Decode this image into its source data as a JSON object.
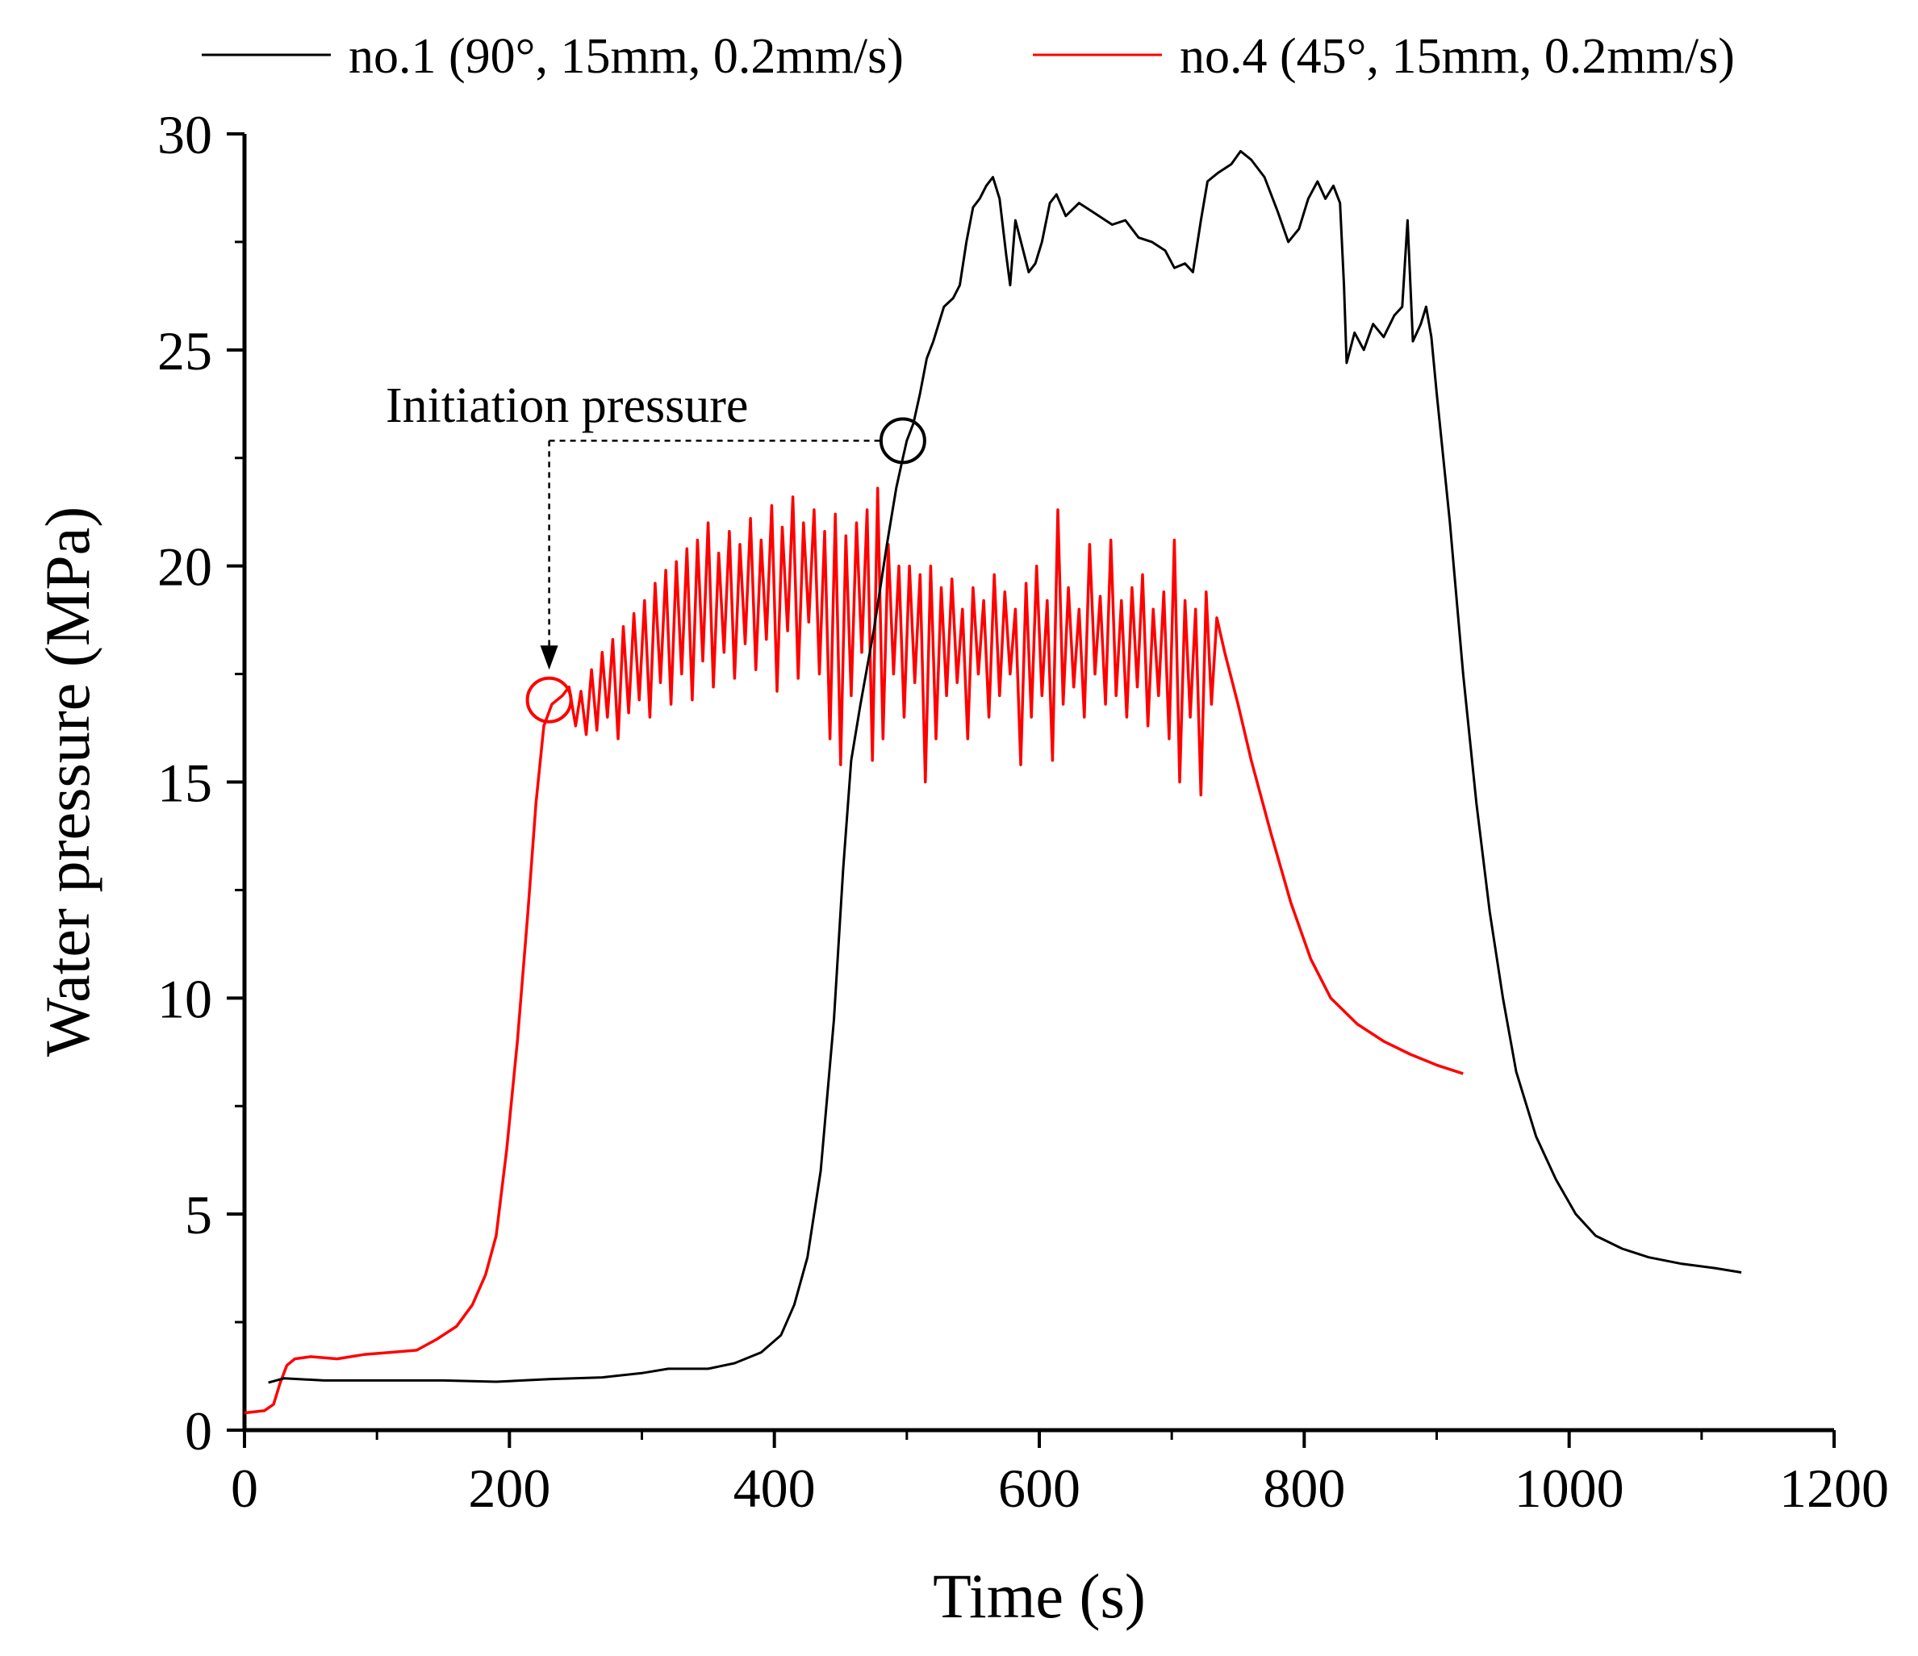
{
  "chart_data": {
    "type": "line",
    "title": "",
    "xlabel": "Time (s)",
    "ylabel": "Water pressure (MPa)",
    "xlim": [
      0,
      1200
    ],
    "ylim": [
      0,
      30
    ],
    "xticks": [
      "0",
      "200",
      "400",
      "600",
      "800",
      "1000",
      "1200"
    ],
    "yticks": [
      "0",
      "5",
      "10",
      "15",
      "20",
      "25",
      "30"
    ],
    "grid": false,
    "legend_position": "top",
    "series": [
      {
        "name": "no.1 (90°, 15mm, 0.2mm/s)",
        "color": "#000000",
        "points": [
          [
            18,
            1.1
          ],
          [
            30,
            1.2
          ],
          [
            60,
            1.15
          ],
          [
            100,
            1.15
          ],
          [
            150,
            1.15
          ],
          [
            190,
            1.12
          ],
          [
            230,
            1.18
          ],
          [
            270,
            1.22
          ],
          [
            300,
            1.32
          ],
          [
            320,
            1.42
          ],
          [
            350,
            1.42
          ],
          [
            370,
            1.55
          ],
          [
            390,
            1.8
          ],
          [
            405,
            2.2
          ],
          [
            415,
            2.9
          ],
          [
            425,
            4.0
          ],
          [
            435,
            6.0
          ],
          [
            445,
            9.5
          ],
          [
            452,
            13.0
          ],
          [
            458,
            15.5
          ],
          [
            465,
            16.8
          ],
          [
            475,
            18.5
          ],
          [
            485,
            20.5
          ],
          [
            492,
            21.8
          ],
          [
            497,
            22.5
          ],
          [
            500,
            22.9
          ],
          [
            505,
            23.3
          ],
          [
            510,
            24.0
          ],
          [
            515,
            24.8
          ],
          [
            520,
            25.2
          ],
          [
            528,
            26.0
          ],
          [
            535,
            26.2
          ],
          [
            540,
            26.5
          ],
          [
            545,
            27.5
          ],
          [
            550,
            28.3
          ],
          [
            555,
            28.5
          ],
          [
            560,
            28.8
          ],
          [
            565,
            29.0
          ],
          [
            570,
            28.5
          ],
          [
            575,
            27.2
          ],
          [
            578,
            26.5
          ],
          [
            582,
            28.0
          ],
          [
            587,
            27.4
          ],
          [
            592,
            26.8
          ],
          [
            597,
            27.0
          ],
          [
            602,
            27.5
          ],
          [
            608,
            28.4
          ],
          [
            613,
            28.6
          ],
          [
            620,
            28.1
          ],
          [
            630,
            28.4
          ],
          [
            640,
            28.2
          ],
          [
            655,
            27.9
          ],
          [
            665,
            28.0
          ],
          [
            675,
            27.6
          ],
          [
            685,
            27.5
          ],
          [
            695,
            27.3
          ],
          [
            702,
            26.9
          ],
          [
            710,
            27.0
          ],
          [
            716,
            26.8
          ],
          [
            722,
            28.0
          ],
          [
            727,
            28.9
          ],
          [
            735,
            29.1
          ],
          [
            745,
            29.3
          ],
          [
            752,
            29.6
          ],
          [
            760,
            29.4
          ],
          [
            770,
            29.0
          ],
          [
            780,
            28.2
          ],
          [
            788,
            27.5
          ],
          [
            796,
            27.8
          ],
          [
            803,
            28.5
          ],
          [
            810,
            28.9
          ],
          [
            816,
            28.5
          ],
          [
            822,
            28.8
          ],
          [
            827,
            28.4
          ],
          [
            830,
            26.5
          ],
          [
            832,
            24.7
          ],
          [
            838,
            25.4
          ],
          [
            845,
            25.0
          ],
          [
            852,
            25.6
          ],
          [
            860,
            25.3
          ],
          [
            868,
            25.8
          ],
          [
            874,
            26.0
          ],
          [
            878,
            28.0
          ],
          [
            882,
            25.2
          ],
          [
            888,
            25.6
          ],
          [
            892,
            26.0
          ],
          [
            896,
            25.3
          ],
          [
            900,
            24.0
          ],
          [
            910,
            21.0
          ],
          [
            920,
            17.5
          ],
          [
            930,
            14.5
          ],
          [
            940,
            12.0
          ],
          [
            950,
            10.0
          ],
          [
            960,
            8.3
          ],
          [
            975,
            6.8
          ],
          [
            990,
            5.8
          ],
          [
            1005,
            5.0
          ],
          [
            1020,
            4.5
          ],
          [
            1040,
            4.2
          ],
          [
            1060,
            4.0
          ],
          [
            1085,
            3.85
          ],
          [
            1110,
            3.75
          ],
          [
            1130,
            3.65
          ]
        ]
      },
      {
        "name": "no.4 (45°, 15mm, 0.2mm/s)",
        "color": "#ff0000",
        "points": [
          [
            0,
            0.4
          ],
          [
            15,
            0.45
          ],
          [
            22,
            0.6
          ],
          [
            27,
            1.1
          ],
          [
            32,
            1.5
          ],
          [
            38,
            1.65
          ],
          [
            50,
            1.7
          ],
          [
            70,
            1.65
          ],
          [
            90,
            1.75
          ],
          [
            110,
            1.8
          ],
          [
            130,
            1.85
          ],
          [
            145,
            2.1
          ],
          [
            160,
            2.4
          ],
          [
            172,
            2.9
          ],
          [
            182,
            3.6
          ],
          [
            190,
            4.5
          ],
          [
            198,
            6.5
          ],
          [
            206,
            9.0
          ],
          [
            214,
            12.0
          ],
          [
            220,
            14.5
          ],
          [
            226,
            16.3
          ],
          [
            232,
            16.8
          ],
          [
            240,
            17.0
          ],
          [
            245,
            17.2
          ],
          [
            250,
            16.3
          ],
          [
            254,
            17.1
          ],
          [
            258,
            16.1
          ],
          [
            262,
            17.6
          ],
          [
            266,
            16.2
          ],
          [
            270,
            18.0
          ],
          [
            274,
            16.5
          ],
          [
            278,
            18.3
          ],
          [
            282,
            16.0
          ],
          [
            286,
            18.6
          ],
          [
            290,
            16.6
          ],
          [
            294,
            18.9
          ],
          [
            298,
            16.9
          ],
          [
            302,
            19.2
          ],
          [
            306,
            16.5
          ],
          [
            310,
            19.6
          ],
          [
            314,
            17.3
          ],
          [
            318,
            19.9
          ],
          [
            322,
            16.8
          ],
          [
            326,
            20.1
          ],
          [
            330,
            17.5
          ],
          [
            334,
            20.4
          ],
          [
            338,
            16.9
          ],
          [
            342,
            20.6
          ],
          [
            346,
            17.8
          ],
          [
            350,
            21.0
          ],
          [
            354,
            17.2
          ],
          [
            358,
            20.3
          ],
          [
            362,
            18.0
          ],
          [
            366,
            20.8
          ],
          [
            370,
            17.4
          ],
          [
            374,
            20.5
          ],
          [
            378,
            18.2
          ],
          [
            382,
            21.1
          ],
          [
            386,
            17.6
          ],
          [
            390,
            20.6
          ],
          [
            394,
            18.3
          ],
          [
            398,
            21.4
          ],
          [
            402,
            17.1
          ],
          [
            406,
            20.9
          ],
          [
            410,
            18.5
          ],
          [
            414,
            21.6
          ],
          [
            418,
            17.4
          ],
          [
            422,
            21.0
          ],
          [
            426,
            18.7
          ],
          [
            430,
            21.3
          ],
          [
            434,
            17.5
          ],
          [
            438,
            20.8
          ],
          [
            442,
            16.0
          ],
          [
            446,
            21.2
          ],
          [
            450,
            15.4
          ],
          [
            454,
            20.7
          ],
          [
            458,
            17.0
          ],
          [
            462,
            21.0
          ],
          [
            466,
            18.0
          ],
          [
            470,
            21.3
          ],
          [
            474,
            15.5
          ],
          [
            478,
            21.8
          ],
          [
            482,
            16.0
          ],
          [
            486,
            20.5
          ],
          [
            490,
            17.5
          ],
          [
            494,
            20.0
          ],
          [
            498,
            16.5
          ],
          [
            502,
            20.0
          ],
          [
            506,
            17.3
          ],
          [
            510,
            19.8
          ],
          [
            514,
            15.0
          ],
          [
            518,
            20.0
          ],
          [
            522,
            16.0
          ],
          [
            526,
            19.5
          ],
          [
            530,
            17.0
          ],
          [
            534,
            19.7
          ],
          [
            538,
            17.3
          ],
          [
            542,
            19.0
          ],
          [
            546,
            16.0
          ],
          [
            550,
            19.5
          ],
          [
            554,
            17.5
          ],
          [
            558,
            19.2
          ],
          [
            562,
            16.5
          ],
          [
            566,
            19.8
          ],
          [
            570,
            17.0
          ],
          [
            574,
            19.4
          ],
          [
            578,
            17.5
          ],
          [
            582,
            19.0
          ],
          [
            586,
            15.4
          ],
          [
            590,
            19.6
          ],
          [
            594,
            16.5
          ],
          [
            598,
            20.0
          ],
          [
            602,
            17.0
          ],
          [
            606,
            19.2
          ],
          [
            610,
            15.5
          ],
          [
            614,
            21.3
          ],
          [
            618,
            16.8
          ],
          [
            622,
            19.5
          ],
          [
            626,
            17.2
          ],
          [
            630,
            19.0
          ],
          [
            634,
            16.5
          ],
          [
            638,
            20.5
          ],
          [
            642,
            17.5
          ],
          [
            646,
            19.3
          ],
          [
            650,
            16.8
          ],
          [
            654,
            20.6
          ],
          [
            658,
            17.0
          ],
          [
            662,
            19.2
          ],
          [
            666,
            16.5
          ],
          [
            670,
            19.5
          ],
          [
            674,
            17.2
          ],
          [
            678,
            19.8
          ],
          [
            682,
            16.3
          ],
          [
            686,
            19.0
          ],
          [
            690,
            17.0
          ],
          [
            694,
            19.4
          ],
          [
            698,
            16.0
          ],
          [
            702,
            20.6
          ],
          [
            706,
            15.0
          ],
          [
            710,
            19.2
          ],
          [
            714,
            16.5
          ],
          [
            718,
            19.0
          ],
          [
            722,
            14.7
          ],
          [
            726,
            19.4
          ],
          [
            730,
            16.8
          ],
          [
            734,
            18.8
          ],
          [
            740,
            18.0
          ],
          [
            750,
            16.8
          ],
          [
            760,
            15.5
          ],
          [
            775,
            13.8
          ],
          [
            790,
            12.2
          ],
          [
            805,
            10.9
          ],
          [
            820,
            10.0
          ],
          [
            840,
            9.4
          ],
          [
            860,
            9.0
          ],
          [
            880,
            8.7
          ],
          [
            900,
            8.45
          ],
          [
            920,
            8.25
          ]
        ]
      }
    ],
    "annotation": {
      "text": "Initiation pressure",
      "markers": [
        {
          "series": "no.1 (90°, 15mm, 0.2mm/s)",
          "x": 497,
          "y": 22.9
        },
        {
          "series": "no.4 (45°, 15mm, 0.2mm/s)",
          "x": 230,
          "y": 16.9
        }
      ],
      "connector_y": 22.9,
      "arrow_x": 230,
      "arrow_end_y": 17.6
    }
  }
}
